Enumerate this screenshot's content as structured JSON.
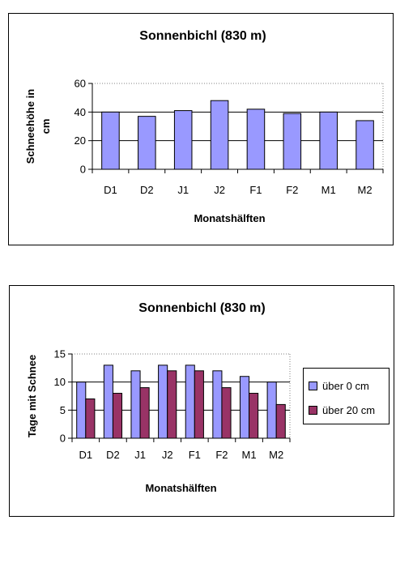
{
  "chart_data": [
    {
      "type": "bar",
      "title": "Sonnenbichl (830 m)",
      "xlabel": "Monatshälften",
      "ylabel": "Schneehöhe in cm",
      "ylabel_lines": [
        "Schneehöhe in",
        "cm"
      ],
      "categories": [
        "D1",
        "D2",
        "J1",
        "J2",
        "F1",
        "F2",
        "M1",
        "M2"
      ],
      "series": [
        {
          "values": [
            40,
            37,
            41,
            48,
            42,
            39,
            40,
            34
          ],
          "color": "#9999ff"
        }
      ],
      "ylim": [
        0,
        60
      ],
      "yticks": [
        0,
        20,
        40,
        60
      ],
      "grid": true,
      "legend": null
    },
    {
      "type": "bar",
      "title": "Sonnenbichl (830 m)",
      "xlabel": "Monatshälften",
      "ylabel": "Tage mit Schnee",
      "categories": [
        "D1",
        "D2",
        "J1",
        "J2",
        "F1",
        "F2",
        "M1",
        "M2"
      ],
      "series": [
        {
          "name": "über 0 cm",
          "values": [
            10,
            13,
            12,
            13,
            13,
            12,
            11,
            10
          ],
          "color": "#9999ff"
        },
        {
          "name": "über 20 cm",
          "values": [
            7,
            8,
            9,
            12,
            12,
            9,
            8,
            6
          ],
          "color": "#993366"
        }
      ],
      "ylim": [
        0,
        15
      ],
      "yticks": [
        0,
        5,
        10,
        15
      ],
      "grid": true,
      "legend": "right"
    }
  ]
}
